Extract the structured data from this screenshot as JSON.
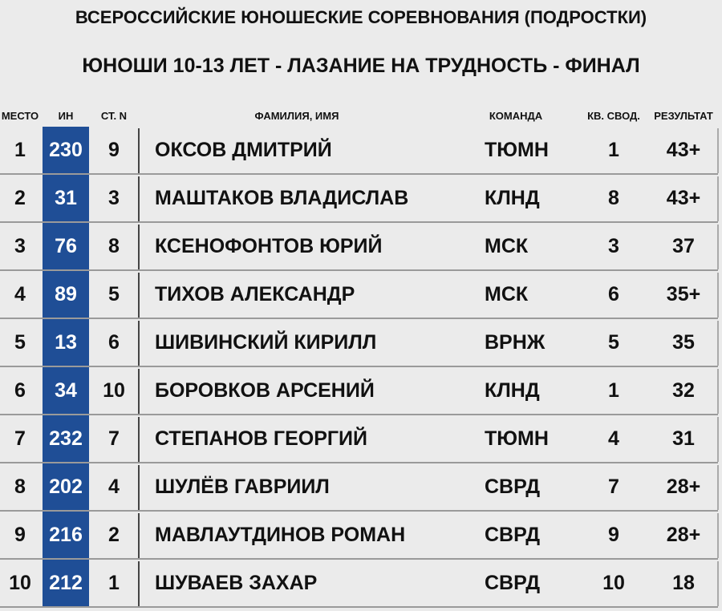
{
  "title": "ВСЕРОССИЙСКИЕ ЮНОШЕСКИЕ СОРЕВНОВАНИЯ (ПОДРОСТКИ)",
  "subtitle": "ЮНОШИ 10-13 ЛЕТ - ЛАЗАНИЕ НА ТРУДНОСТЬ - ФИНАЛ",
  "columns": {
    "place": "МЕСТО",
    "id": "ИН",
    "start": "СТ. N",
    "name": "ФАМИЛИЯ, ИМЯ",
    "team": "КОМАНДА",
    "qual": "КВ. СВОД.",
    "result": "РЕЗУЛЬТАТ"
  },
  "accent_color": "#1f4e96",
  "rows": [
    {
      "place": "1",
      "id": "230",
      "start": "9",
      "name": "ОКСОВ ДМИТРИЙ",
      "team": "ТЮМН",
      "qual": "1",
      "result": "43+"
    },
    {
      "place": "2",
      "id": "31",
      "start": "3",
      "name": "МАШТАКОВ ВЛАДИСЛАВ",
      "team": "КЛНД",
      "qual": "8",
      "result": "43+"
    },
    {
      "place": "3",
      "id": "76",
      "start": "8",
      "name": "КСЕНОФОНТОВ ЮРИЙ",
      "team": "МСК",
      "qual": "3",
      "result": "37"
    },
    {
      "place": "4",
      "id": "89",
      "start": "5",
      "name": "ТИХОВ АЛЕКСАНДР",
      "team": "МСК",
      "qual": "6",
      "result": "35+"
    },
    {
      "place": "5",
      "id": "13",
      "start": "6",
      "name": "ШИВИНСКИЙ КИРИЛЛ",
      "team": "ВРНЖ",
      "qual": "5",
      "result": "35"
    },
    {
      "place": "6",
      "id": "34",
      "start": "10",
      "name": "БОРОВКОВ АРСЕНИЙ",
      "team": "КЛНД",
      "qual": "1",
      "result": "32"
    },
    {
      "place": "7",
      "id": "232",
      "start": "7",
      "name": "СТЕПАНОВ ГЕОРГИЙ",
      "team": "ТЮМН",
      "qual": "4",
      "result": "31"
    },
    {
      "place": "8",
      "id": "202",
      "start": "4",
      "name": "ШУЛЁВ ГАВРИИЛ",
      "team": "СВРД",
      "qual": "7",
      "result": "28+"
    },
    {
      "place": "9",
      "id": "216",
      "start": "2",
      "name": "МАВЛАУТДИНОВ РОМАН",
      "team": "СВРД",
      "qual": "9",
      "result": "28+"
    },
    {
      "place": "10",
      "id": "212",
      "start": "1",
      "name": "ШУВАЕВ ЗАХАР",
      "team": "СВРД",
      "qual": "10",
      "result": "18"
    }
  ]
}
